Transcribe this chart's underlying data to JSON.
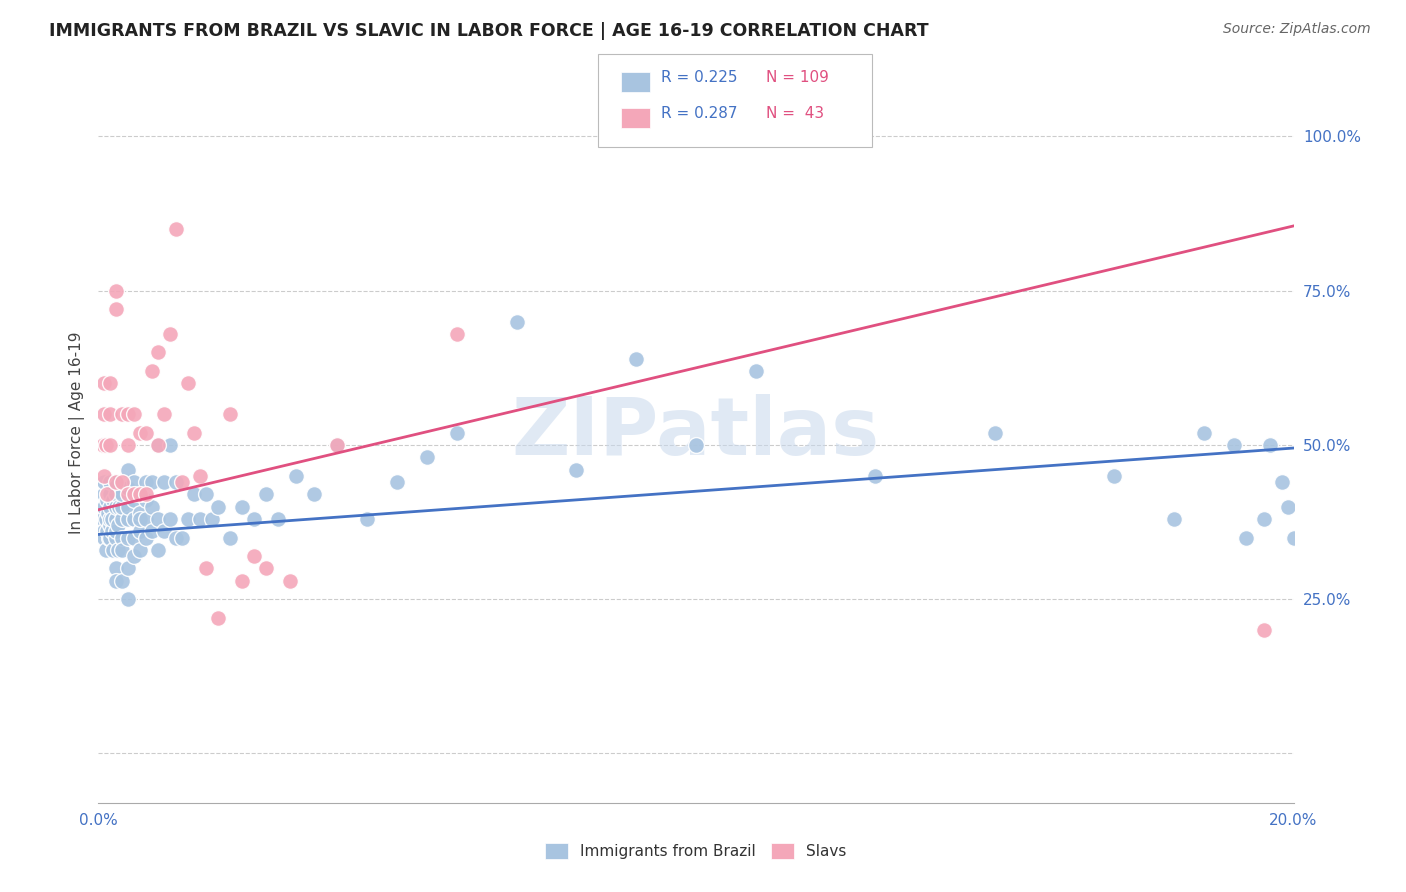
{
  "title": "IMMIGRANTS FROM BRAZIL VS SLAVIC IN LABOR FORCE | AGE 16-19 CORRELATION CHART",
  "source": "Source: ZipAtlas.com",
  "ylabel_label": "In Labor Force | Age 16-19",
  "x_min": 0.0,
  "x_max": 0.2,
  "y_min": 0.0,
  "y_max": 1.1,
  "y_ticks": [
    0.0,
    0.25,
    0.5,
    0.75,
    1.0
  ],
  "y_tick_labels": [
    "",
    "25.0%",
    "50.0%",
    "75.0%",
    "100.0%"
  ],
  "brazil_color": "#a8c4e0",
  "slavic_color": "#f4a7b9",
  "brazil_line_color": "#4472c4",
  "slavic_line_color": "#e05080",
  "brazil_R": 0.225,
  "brazil_N": 109,
  "slavic_R": 0.287,
  "slavic_N": 43,
  "legend_R_color": "#4472c4",
  "legend_N_color": "#e05080",
  "watermark": "ZIPatlas",
  "brazil_trend_x0": 0.0,
  "brazil_trend_y0": 0.355,
  "brazil_trend_x1": 0.2,
  "brazil_trend_y1": 0.495,
  "slavic_trend_x0": 0.0,
  "slavic_trend_y0": 0.395,
  "slavic_trend_x1": 0.2,
  "slavic_trend_y1": 0.855,
  "brazil_x": [
    0.0008,
    0.0009,
    0.001,
    0.001,
    0.001,
    0.001,
    0.0012,
    0.0013,
    0.0014,
    0.0015,
    0.0016,
    0.0017,
    0.0018,
    0.0019,
    0.002,
    0.002,
    0.002,
    0.002,
    0.002,
    0.0022,
    0.0023,
    0.0024,
    0.0025,
    0.003,
    0.003,
    0.003,
    0.003,
    0.003,
    0.003,
    0.003,
    0.003,
    0.0032,
    0.0033,
    0.0034,
    0.004,
    0.004,
    0.004,
    0.004,
    0.004,
    0.004,
    0.005,
    0.005,
    0.005,
    0.005,
    0.005,
    0.005,
    0.005,
    0.006,
    0.006,
    0.006,
    0.006,
    0.006,
    0.007,
    0.007,
    0.007,
    0.007,
    0.007,
    0.008,
    0.008,
    0.008,
    0.008,
    0.009,
    0.009,
    0.009,
    0.01,
    0.01,
    0.01,
    0.011,
    0.011,
    0.012,
    0.012,
    0.013,
    0.013,
    0.014,
    0.015,
    0.016,
    0.017,
    0.018,
    0.019,
    0.02,
    0.022,
    0.024,
    0.026,
    0.028,
    0.03,
    0.033,
    0.036,
    0.04,
    0.045,
    0.05,
    0.055,
    0.06,
    0.07,
    0.08,
    0.09,
    0.1,
    0.11,
    0.13,
    0.15,
    0.17,
    0.18,
    0.185,
    0.19,
    0.192,
    0.195,
    0.196,
    0.198,
    0.199,
    0.2
  ],
  "brazil_y": [
    0.38,
    0.36,
    0.4,
    0.42,
    0.35,
    0.44,
    0.33,
    0.38,
    0.41,
    0.36,
    0.39,
    0.42,
    0.35,
    0.37,
    0.38,
    0.4,
    0.35,
    0.42,
    0.44,
    0.36,
    0.38,
    0.33,
    0.41,
    0.3,
    0.35,
    0.38,
    0.4,
    0.42,
    0.44,
    0.36,
    0.28,
    0.33,
    0.37,
    0.4,
    0.35,
    0.38,
    0.4,
    0.42,
    0.28,
    0.33,
    0.25,
    0.3,
    0.35,
    0.38,
    0.4,
    0.43,
    0.46,
    0.32,
    0.35,
    0.38,
    0.41,
    0.44,
    0.33,
    0.36,
    0.39,
    0.42,
    0.38,
    0.35,
    0.38,
    0.41,
    0.44,
    0.36,
    0.4,
    0.44,
    0.33,
    0.38,
    0.5,
    0.36,
    0.44,
    0.38,
    0.5,
    0.35,
    0.44,
    0.35,
    0.38,
    0.42,
    0.38,
    0.42,
    0.38,
    0.4,
    0.35,
    0.4,
    0.38,
    0.42,
    0.38,
    0.45,
    0.42,
    0.5,
    0.38,
    0.44,
    0.48,
    0.52,
    0.7,
    0.46,
    0.64,
    0.5,
    0.62,
    0.45,
    0.52,
    0.45,
    0.38,
    0.52,
    0.5,
    0.35,
    0.38,
    0.5,
    0.44,
    0.4,
    0.35
  ],
  "slavic_x": [
    0.0008,
    0.001,
    0.001,
    0.001,
    0.0012,
    0.0014,
    0.002,
    0.002,
    0.002,
    0.003,
    0.003,
    0.003,
    0.004,
    0.004,
    0.005,
    0.005,
    0.005,
    0.006,
    0.006,
    0.007,
    0.007,
    0.008,
    0.008,
    0.009,
    0.01,
    0.01,
    0.011,
    0.012,
    0.013,
    0.014,
    0.015,
    0.016,
    0.017,
    0.018,
    0.02,
    0.022,
    0.024,
    0.026,
    0.028,
    0.032,
    0.04,
    0.06,
    0.195
  ],
  "slavic_y": [
    0.5,
    0.55,
    0.6,
    0.45,
    0.5,
    0.42,
    0.5,
    0.55,
    0.6,
    0.44,
    0.72,
    0.75,
    0.44,
    0.55,
    0.5,
    0.55,
    0.42,
    0.55,
    0.42,
    0.52,
    0.42,
    0.52,
    0.42,
    0.62,
    0.5,
    0.65,
    0.55,
    0.68,
    0.85,
    0.44,
    0.6,
    0.52,
    0.45,
    0.3,
    0.22,
    0.55,
    0.28,
    0.32,
    0.3,
    0.28,
    0.5,
    0.68,
    0.2
  ]
}
